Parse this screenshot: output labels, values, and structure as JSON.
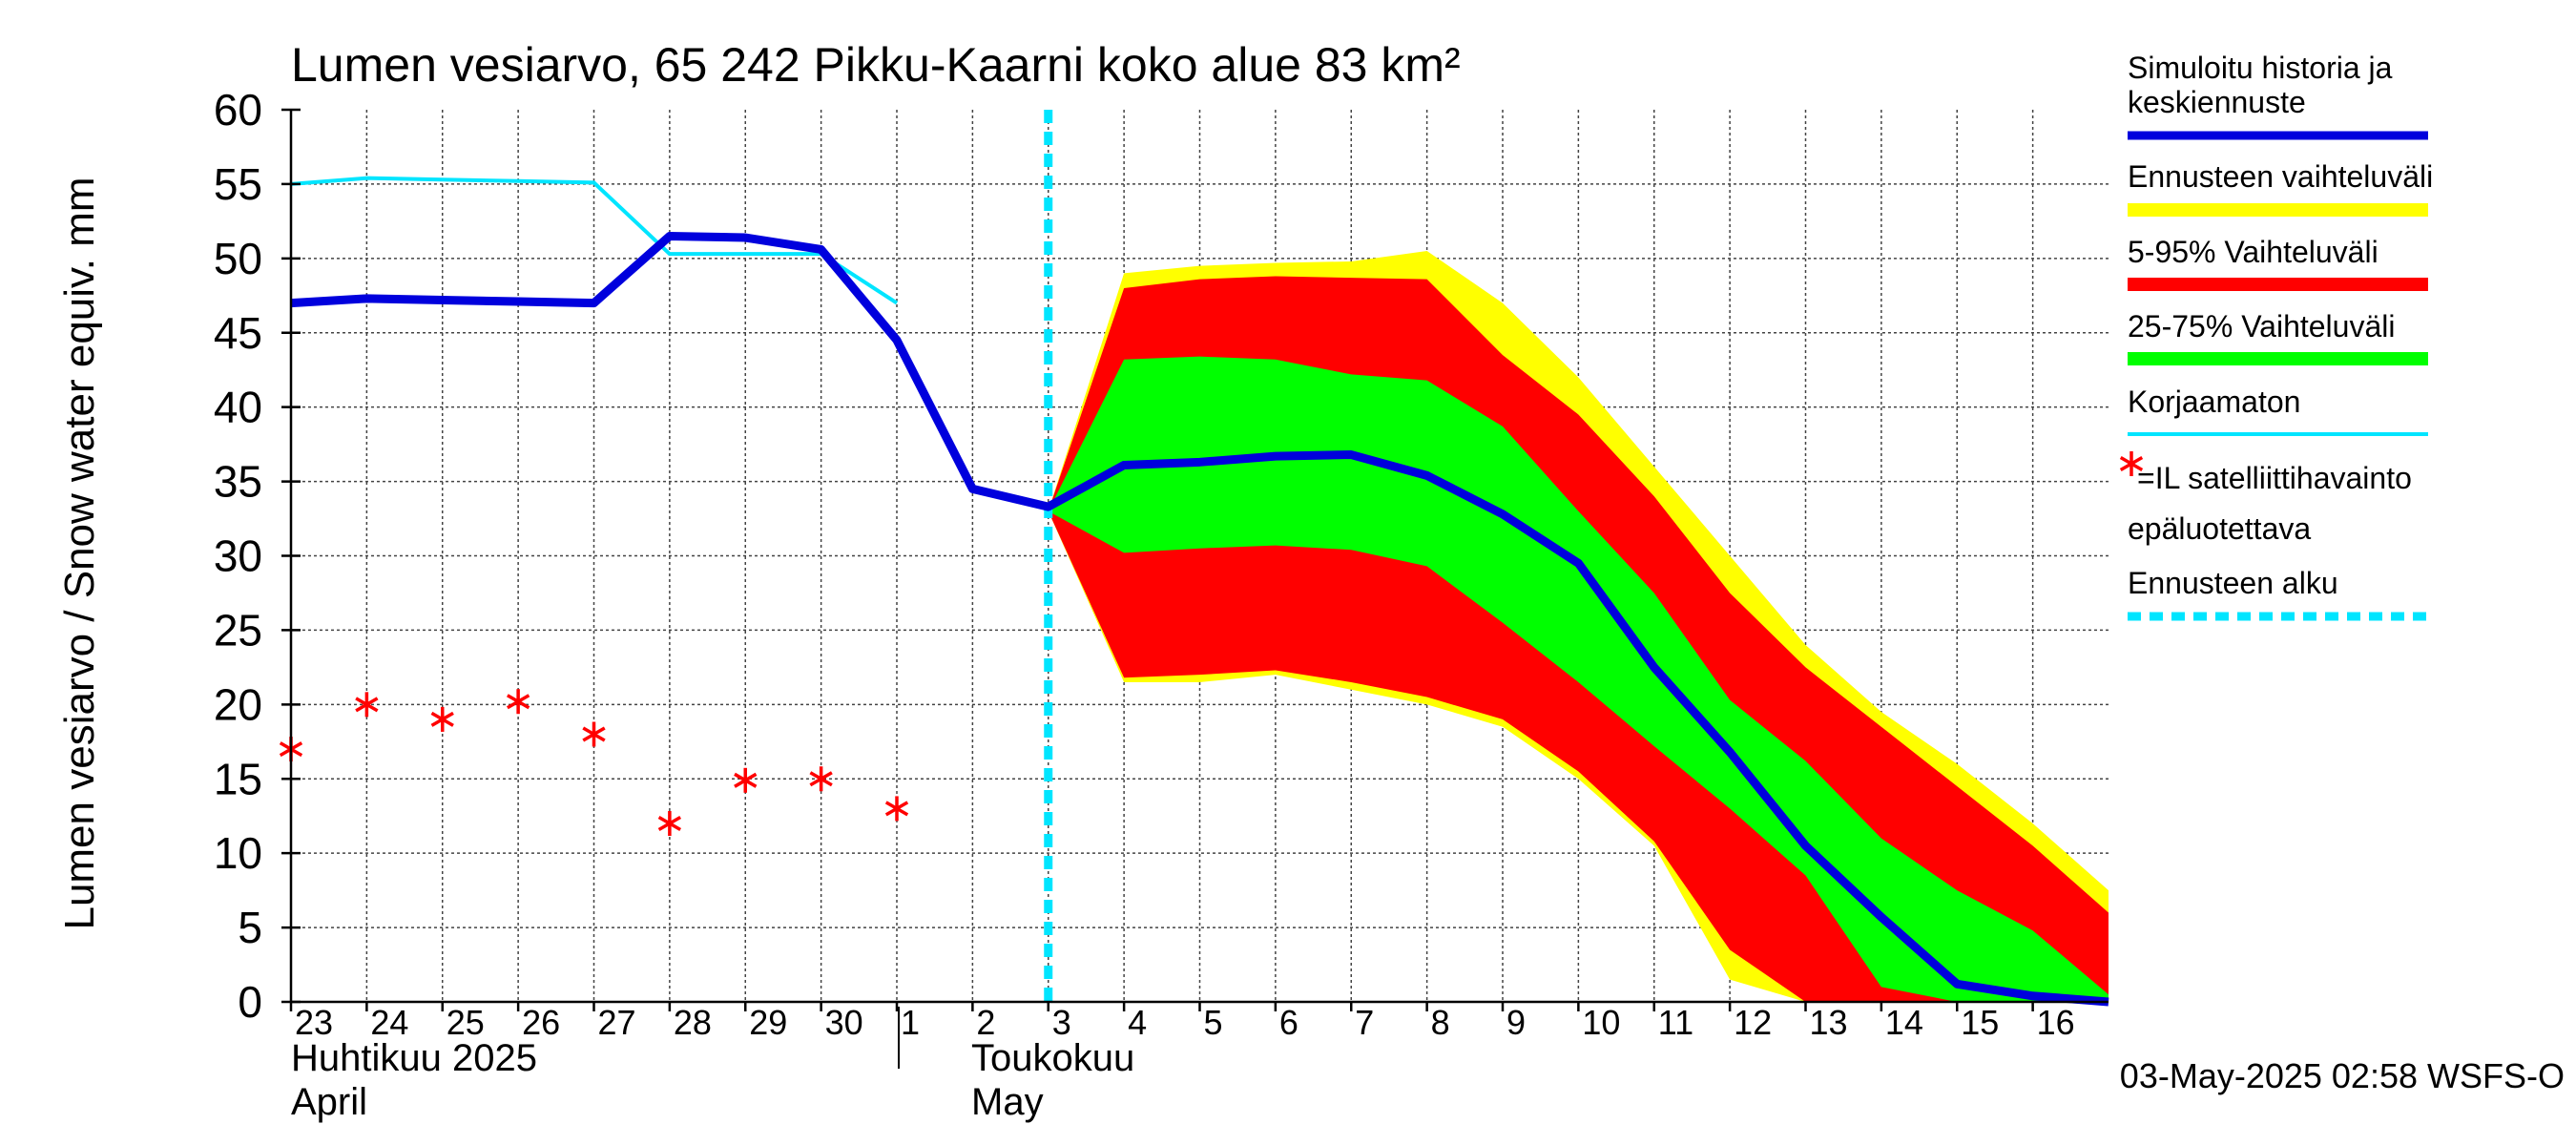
{
  "chart_data": {
    "type": "area",
    "title": "Lumen vesiarvo, 65 242 Pikku-Kaarni koko alue 83 km²",
    "ylabel": "Lumen vesiarvo / Snow water equiv.    mm",
    "ylim": [
      0,
      60
    ],
    "yticks": [
      0,
      5,
      10,
      15,
      20,
      25,
      30,
      35,
      40,
      45,
      50,
      55,
      60
    ],
    "xlim": [
      0,
      24
    ],
    "xticks": [
      {
        "x": 0,
        "label": "23"
      },
      {
        "x": 1,
        "label": "24"
      },
      {
        "x": 2,
        "label": "25"
      },
      {
        "x": 3,
        "label": "26"
      },
      {
        "x": 4,
        "label": "27"
      },
      {
        "x": 5,
        "label": "28"
      },
      {
        "x": 6,
        "label": "29"
      },
      {
        "x": 7,
        "label": "30"
      },
      {
        "x": 8,
        "label": "1"
      },
      {
        "x": 9,
        "label": "2"
      },
      {
        "x": 10,
        "label": "3"
      },
      {
        "x": 11,
        "label": "4"
      },
      {
        "x": 12,
        "label": "5"
      },
      {
        "x": 13,
        "label": "6"
      },
      {
        "x": 14,
        "label": "7"
      },
      {
        "x": 15,
        "label": "8"
      },
      {
        "x": 16,
        "label": "9"
      },
      {
        "x": 17,
        "label": "10"
      },
      {
        "x": 18,
        "label": "11"
      },
      {
        "x": 19,
        "label": "12"
      },
      {
        "x": 20,
        "label": "13"
      },
      {
        "x": 21,
        "label": "14"
      },
      {
        "x": 22,
        "label": "15"
      },
      {
        "x": 23,
        "label": "16"
      }
    ],
    "month_labels": {
      "april_fi": "Huhtikuu  2025",
      "april_en": "April",
      "may_fi": "Toukokuu",
      "may_en": "May"
    },
    "forecast_start_x": 10,
    "series": {
      "forecast_range": {
        "name": "Ennusteen vaihteluväli",
        "color": "#ffff00",
        "upper": [
          [
            10,
            33
          ],
          [
            11,
            49
          ],
          [
            12,
            49.5
          ],
          [
            13,
            49.7
          ],
          [
            14,
            49.8
          ],
          [
            15,
            50.5
          ],
          [
            16,
            47
          ],
          [
            17,
            42
          ],
          [
            18,
            36
          ],
          [
            19,
            30
          ],
          [
            20,
            24
          ],
          [
            21,
            19.5
          ],
          [
            22,
            16
          ],
          [
            23,
            12
          ],
          [
            24,
            7.5
          ]
        ],
        "lower": [
          [
            10,
            33
          ],
          [
            11,
            21.5
          ],
          [
            12,
            21.5
          ],
          [
            13,
            22
          ],
          [
            14,
            21
          ],
          [
            15,
            20
          ],
          [
            16,
            18.5
          ],
          [
            17,
            15
          ],
          [
            18,
            10.5
          ],
          [
            19,
            1.5
          ],
          [
            20,
            0
          ],
          [
            21,
            0
          ],
          [
            22,
            0
          ],
          [
            23,
            0
          ],
          [
            24,
            0
          ]
        ]
      },
      "p5_95": {
        "name": "5-95% Vaihteluväli",
        "color": "#ff0000",
        "upper": [
          [
            10,
            33
          ],
          [
            11,
            48
          ],
          [
            12,
            48.6
          ],
          [
            13,
            48.8
          ],
          [
            14,
            48.7
          ],
          [
            15,
            48.6
          ],
          [
            16,
            43.5
          ],
          [
            17,
            39.5
          ],
          [
            18,
            34
          ],
          [
            19,
            27.5
          ],
          [
            20,
            22.5
          ],
          [
            21,
            18.5
          ],
          [
            22,
            14.5
          ],
          [
            23,
            10.5
          ],
          [
            24,
            6
          ]
        ],
        "lower": [
          [
            10,
            33
          ],
          [
            11,
            21.8
          ],
          [
            12,
            22
          ],
          [
            13,
            22.3
          ],
          [
            14,
            21.5
          ],
          [
            15,
            20.5
          ],
          [
            16,
            19
          ],
          [
            17,
            15.5
          ],
          [
            18,
            10.8
          ],
          [
            19,
            3.5
          ],
          [
            20,
            0
          ],
          [
            21,
            0
          ],
          [
            22,
            0
          ],
          [
            23,
            0
          ],
          [
            24,
            0
          ]
        ]
      },
      "p25_75": {
        "name": "25-75% Vaihteluväli",
        "color": "#00ff00",
        "upper": [
          [
            10,
            33
          ],
          [
            11,
            43.2
          ],
          [
            12,
            43.4
          ],
          [
            13,
            43.2
          ],
          [
            14,
            42.2
          ],
          [
            15,
            41.8
          ],
          [
            16,
            38.7
          ],
          [
            17,
            33
          ],
          [
            18,
            27.5
          ],
          [
            19,
            20.3
          ],
          [
            20,
            16.2
          ],
          [
            21,
            11
          ],
          [
            22,
            7.5
          ],
          [
            23,
            4.8
          ],
          [
            24,
            0.5
          ]
        ],
        "lower": [
          [
            10,
            33
          ],
          [
            11,
            30.2
          ],
          [
            12,
            30.5
          ],
          [
            13,
            30.7
          ],
          [
            14,
            30.4
          ],
          [
            15,
            29.3
          ],
          [
            16,
            25.5
          ],
          [
            17,
            21.5
          ],
          [
            18,
            17.2
          ],
          [
            19,
            13
          ],
          [
            20,
            8.5
          ],
          [
            21,
            1
          ],
          [
            22,
            0
          ],
          [
            23,
            0
          ],
          [
            24,
            0
          ]
        ]
      },
      "simulated": {
        "name": "Simuloitu historia ja keskiennuste",
        "color": "#0000dd",
        "points": [
          [
            0,
            47
          ],
          [
            1,
            47.3
          ],
          [
            2,
            47.2
          ],
          [
            3,
            47.1
          ],
          [
            4,
            47
          ],
          [
            5,
            51.5
          ],
          [
            6,
            51.4
          ],
          [
            7,
            50.6
          ],
          [
            8,
            44.5
          ],
          [
            9,
            34.5
          ],
          [
            10,
            33.3
          ],
          [
            11,
            36.1
          ],
          [
            12,
            36.3
          ],
          [
            13,
            36.7
          ],
          [
            14,
            36.8
          ],
          [
            15,
            35.4
          ],
          [
            16,
            32.8
          ],
          [
            17,
            29.5
          ],
          [
            18,
            22.5
          ],
          [
            19,
            16.8
          ],
          [
            20,
            10.5
          ],
          [
            21,
            5.7
          ],
          [
            22,
            1.2
          ],
          [
            23,
            0.4
          ],
          [
            24,
            0
          ]
        ]
      },
      "uncorrected": {
        "name": "Korjaamaton",
        "color": "#00e5ff",
        "points": [
          [
            0,
            55
          ],
          [
            1,
            55.4
          ],
          [
            2,
            55.3
          ],
          [
            3,
            55.2
          ],
          [
            4,
            55.1
          ],
          [
            5,
            50.3
          ],
          [
            6,
            50.3
          ],
          [
            7,
            50.3
          ],
          [
            8,
            47
          ]
        ]
      },
      "satellite": {
        "name": "=IL satelliittihavainto",
        "color": "#ff0000",
        "points": [
          [
            0,
            17
          ],
          [
            1,
            20
          ],
          [
            2,
            19
          ],
          [
            3,
            20.2
          ],
          [
            4,
            18
          ],
          [
            5,
            12
          ],
          [
            6,
            14.9
          ],
          [
            7,
            15
          ],
          [
            8,
            13
          ]
        ]
      }
    },
    "legend": [
      {
        "key": "simulated",
        "label_lines": [
          "Simuloitu historia ja",
          "keskiennuste"
        ],
        "color": "#0000dd",
        "style": "line"
      },
      {
        "key": "forecast_range",
        "label_lines": [
          "Ennusteen vaihteluväli"
        ],
        "color": "#ffff00",
        "style": "band"
      },
      {
        "key": "p5_95",
        "label_lines": [
          "5-95% Vaihteluväli"
        ],
        "color": "#ff0000",
        "style": "band"
      },
      {
        "key": "p25_75",
        "label_lines": [
          "25-75% Vaihteluväli"
        ],
        "color": "#00ff00",
        "style": "band"
      },
      {
        "key": "uncorrected",
        "label_lines": [
          "Korjaamaton"
        ],
        "color": "#00e5ff",
        "style": "thin"
      },
      {
        "key": "satellite",
        "label_lines": [
          "=IL satelliittihavainto",
          "epäluotettava"
        ],
        "color": "#ff0000",
        "style": "marker"
      },
      {
        "key": "forecast_start",
        "label_lines": [
          "Ennusteen alku"
        ],
        "color": "#00e5ff",
        "style": "dashed"
      }
    ],
    "footer": "03-May-2025 02:58 WSFS-O"
  }
}
